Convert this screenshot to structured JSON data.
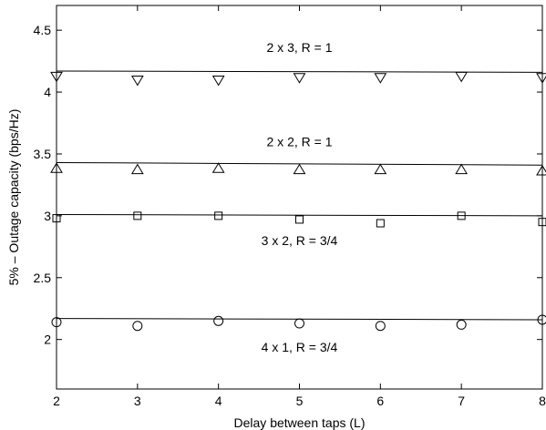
{
  "chart_data": {
    "type": "scatter",
    "title": "",
    "xlabel": "Delay between taps (L)",
    "ylabel": "5% – Outage capacity (bps/Hz)",
    "xlim": [
      2,
      8
    ],
    "ylim": [
      1.6,
      4.7
    ],
    "xticks": [
      2,
      3,
      4,
      5,
      6,
      7,
      8
    ],
    "xtick_labels": [
      "2",
      "3",
      "4",
      "5",
      "6",
      "7",
      "8"
    ],
    "yticks": [
      2,
      2.5,
      3,
      3.5,
      4,
      4.5
    ],
    "ytick_labels": [
      "2",
      "2.5",
      "3",
      "3.5",
      "4",
      "4.5"
    ],
    "grid": false,
    "series": [
      {
        "marker": "triangle-down",
        "label": "2 x 3, R = 1",
        "x": [
          2,
          3,
          4,
          5,
          6,
          7,
          8
        ],
        "y": [
          4.13,
          4.1,
          4.1,
          4.12,
          4.12,
          4.13,
          4.12
        ],
        "fit": [
          4.17,
          4.16
        ]
      },
      {
        "marker": "triangle-up",
        "label": "2 x 2, R = 1",
        "x": [
          2,
          3,
          4,
          5,
          6,
          7,
          8
        ],
        "y": [
          3.38,
          3.37,
          3.38,
          3.37,
          3.37,
          3.37,
          3.36
        ],
        "fit": [
          3.43,
          3.41
        ]
      },
      {
        "marker": "square",
        "label": "3 x 2, R = 3/4",
        "x": [
          2,
          3,
          4,
          5,
          6,
          7,
          8
        ],
        "y": [
          2.98,
          3.0,
          3.0,
          2.97,
          2.94,
          3.0,
          2.95
        ],
        "fit": [
          3.01,
          3.0
        ]
      },
      {
        "marker": "circle",
        "label": "4 x 1, R = 3/4",
        "x": [
          2,
          3,
          4,
          5,
          6,
          7,
          8
        ],
        "y": [
          2.14,
          2.11,
          2.15,
          2.13,
          2.11,
          2.12,
          2.16
        ],
        "fit": [
          2.17,
          2.16
        ]
      }
    ],
    "annotations": [
      {
        "text": "2 x 3, R = 1",
        "x": 5,
        "y": 4.36
      },
      {
        "text": "2 x 2, R = 1",
        "x": 5,
        "y": 3.6
      },
      {
        "text": "3 x 2, R = 3/4",
        "x": 5,
        "y": 2.8
      },
      {
        "text": "4 x 1, R = 3/4",
        "x": 5,
        "y": 1.94
      }
    ]
  }
}
